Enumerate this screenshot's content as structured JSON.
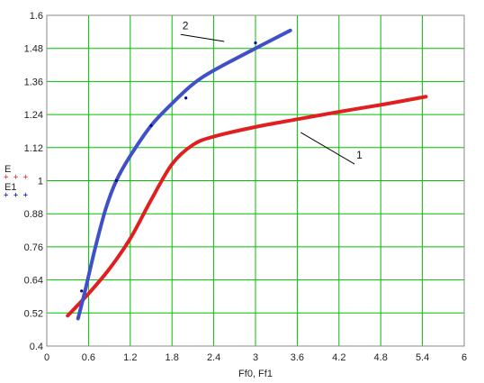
{
  "chart_data": {
    "type": "line",
    "title": "",
    "xlabel": "Ff0, Ff1",
    "ylabel_entries": [
      "E",
      "E1"
    ],
    "xlim": [
      0,
      6
    ],
    "ylim": [
      0.4,
      1.6
    ],
    "x_ticks": [
      "0",
      "0.6",
      "1.2",
      "1.8",
      "2.4",
      "3",
      "3.6",
      "4.2",
      "4.8",
      "5.4",
      "6"
    ],
    "y_ticks": [
      "0.4",
      "0.52",
      "0.64",
      "0.76",
      "0.88",
      "1",
      "1.12",
      "1.24",
      "1.36",
      "1.48",
      "1.6"
    ],
    "grid": true,
    "series": [
      {
        "label": "1",
        "color": "#e02020",
        "points": [
          [
            0.3,
            0.51
          ],
          [
            0.6,
            0.59
          ],
          [
            0.9,
            0.68
          ],
          [
            1.2,
            0.79
          ],
          [
            1.5,
            0.93
          ],
          [
            1.8,
            1.06
          ],
          [
            2.1,
            1.13
          ],
          [
            2.4,
            1.16
          ],
          [
            3.0,
            1.195
          ],
          [
            3.6,
            1.223
          ],
          [
            4.2,
            1.25
          ],
          [
            4.8,
            1.275
          ],
          [
            5.45,
            1.305
          ]
        ]
      },
      {
        "label": "2",
        "color": "#4050c8",
        "points": [
          [
            0.45,
            0.5
          ],
          [
            0.55,
            0.6
          ],
          [
            0.7,
            0.76
          ],
          [
            0.85,
            0.9
          ],
          [
            1.0,
            1.0
          ],
          [
            1.2,
            1.09
          ],
          [
            1.5,
            1.2
          ],
          [
            1.8,
            1.28
          ],
          [
            2.1,
            1.35
          ],
          [
            2.4,
            1.4
          ],
          [
            3.0,
            1.48
          ],
          [
            3.5,
            1.545
          ]
        ]
      }
    ],
    "markers": [
      {
        "series": "E1",
        "color": "#0000aa",
        "points": [
          [
            0.5,
            0.6
          ],
          [
            1.0,
            1.0
          ],
          [
            1.5,
            1.2
          ],
          [
            2.0,
            1.3
          ],
          [
            3.0,
            1.5
          ]
        ]
      }
    ],
    "legend_glyph": "+ + +",
    "annotations": [
      {
        "text": "1",
        "x": 4.45,
        "y": 1.08,
        "pointer_to": [
          3.65,
          1.175
        ]
      },
      {
        "text": "2",
        "x": 1.95,
        "y": 1.55,
        "pointer_to": [
          2.55,
          1.505
        ]
      }
    ]
  }
}
